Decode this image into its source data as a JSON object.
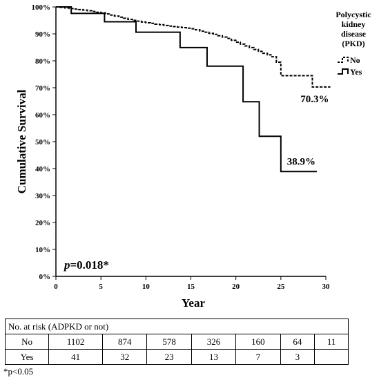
{
  "chart_data": {
    "type": "line",
    "subtype": "kaplan-meier",
    "ylabel": "Cumulative Survival",
    "xlabel": "Year",
    "xlim": [
      0,
      30
    ],
    "ylim": [
      0,
      100
    ],
    "x_ticks": [
      "0",
      "5",
      "10",
      "15",
      "20",
      "25",
      "30"
    ],
    "y_ticks": [
      "0%",
      "10%",
      "20%",
      "30%",
      "40%",
      "50%",
      "60%",
      "70%",
      "80%",
      "90%",
      "100%"
    ],
    "grid": false,
    "legend": {
      "title": [
        "Polycystic",
        "kidney",
        "disease",
        "(PKD)"
      ],
      "position": "top-right",
      "entries": [
        "No",
        "Yes"
      ]
    },
    "series": [
      {
        "name": "No",
        "style": "dashed",
        "end_label": "70.3%",
        "x": [
          0,
          0.5,
          1,
          1.5,
          2,
          2.5,
          3,
          3.5,
          4,
          4.5,
          5,
          5.5,
          6,
          6.5,
          7,
          7.5,
          8,
          8.5,
          9,
          9.5,
          10,
          10.5,
          11,
          11.5,
          12,
          12.5,
          13,
          13.5,
          14,
          14.5,
          15,
          15.5,
          16,
          16.5,
          17,
          17.5,
          18,
          18.5,
          19,
          19.5,
          20,
          20.5,
          21,
          21.5,
          22,
          22.5,
          23,
          23.5,
          24,
          24.5,
          25,
          25.5,
          26,
          26.5,
          27,
          27.5,
          28,
          28.5,
          29,
          29.5,
          30,
          30.5
        ],
        "y": [
          100,
          99.8,
          99.6,
          99.4,
          99.2,
          99.0,
          98.8,
          98.6,
          98.3,
          98.0,
          97.8,
          97.4,
          97.0,
          96.6,
          96.2,
          95.8,
          95.4,
          95.0,
          94.7,
          94.4,
          94.1,
          93.9,
          93.6,
          93.4,
          93.1,
          92.9,
          92.7,
          92.5,
          92.3,
          92.1,
          91.9,
          91.5,
          91.0,
          90.6,
          90.2,
          89.8,
          89.3,
          88.8,
          88.3,
          87.6,
          86.9,
          86.2,
          85.5,
          84.9,
          84.2,
          83.5,
          82.8,
          82.2,
          81.5,
          79.5,
          74.5,
          74.5,
          74.5,
          74.5,
          74.5,
          74.5,
          74.5,
          70.3,
          70.3,
          70.3,
          70.3,
          70.3
        ]
      },
      {
        "name": "Yes",
        "style": "solid",
        "end_label": "38.9%",
        "x": [
          0,
          1.7,
          5.4,
          8.9,
          13.8,
          16.8,
          20.8,
          22.6,
          25.0,
          29.0
        ],
        "y": [
          100,
          97.6,
          94.5,
          90.6,
          84.9,
          78.0,
          64.8,
          52.0,
          38.9,
          38.9
        ]
      }
    ],
    "annotation": {
      "p_italic": "p",
      "p_rest": "=0.018*"
    }
  },
  "risk_table": {
    "caption": "No. at risk (ADPKD or not)",
    "rows": [
      {
        "label": "No",
        "values": [
          "1102",
          "874",
          "578",
          "326",
          "160",
          "64",
          "11"
        ]
      },
      {
        "label": "Yes",
        "values": [
          "41",
          "32",
          "23",
          "13",
          "7",
          "3",
          ""
        ]
      }
    ]
  },
  "footnote": "*p<0.05"
}
